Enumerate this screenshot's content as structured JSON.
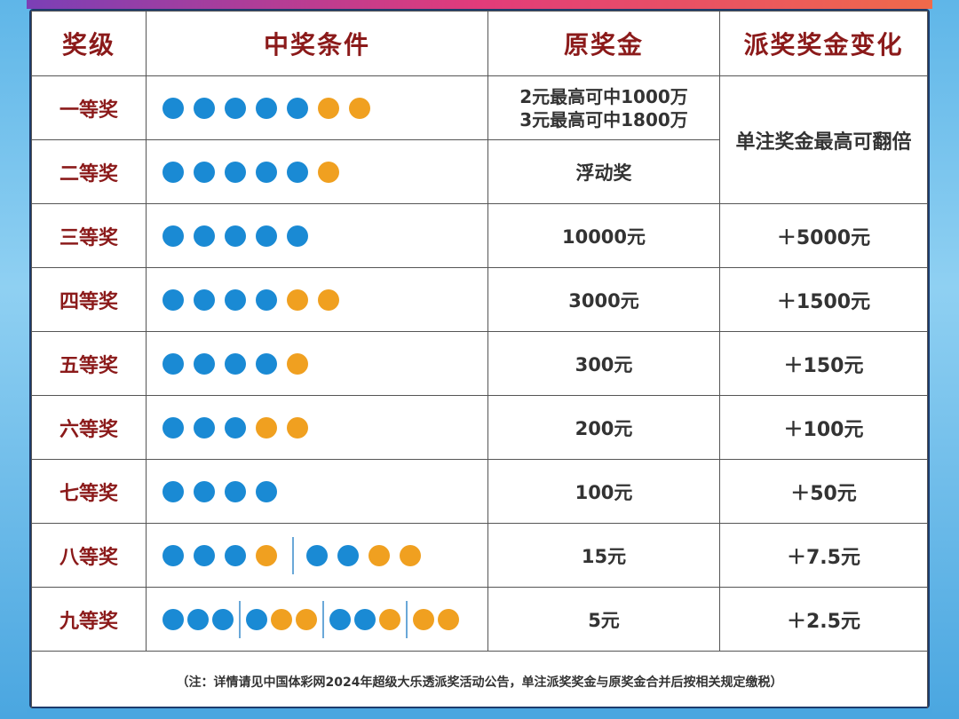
{
  "headers": [
    "奖级",
    "中奖条件",
    "原奖金",
    "派奖奖金变化"
  ],
  "rows": [
    {
      "level": "一等奖",
      "balls": "bbbbboo",
      "amount_lines": [
        "2元最高可中1000万",
        "3元最高可中1800万"
      ]
    },
    {
      "level": "二等奖",
      "balls": "bbbbbo",
      "amount_lines": [
        "浮动奖"
      ]
    },
    {
      "level": "三等奖",
      "balls": "bbbbb",
      "amount_lines": [
        "10000元"
      ],
      "change": "＋5000元"
    },
    {
      "level": "四等奖",
      "balls": "bbbboo",
      "amount_lines": [
        "3000元"
      ],
      "change": "＋1500元"
    },
    {
      "level": "五等奖",
      "balls": "bbbbo",
      "amount_lines": [
        "300元"
      ],
      "change": "＋150元"
    },
    {
      "level": "六等奖",
      "balls": "bbboo",
      "amount_lines": [
        "200元"
      ],
      "change": "＋100元"
    },
    {
      "level": "七等奖",
      "balls": "bbbb",
      "amount_lines": [
        "100元"
      ],
      "change": "＋50元"
    },
    {
      "level": "八等奖",
      "balls": "bbbo|bboo",
      "amount_lines": [
        "15元"
      ],
      "change": "＋7.5元"
    },
    {
      "level": "九等奖",
      "balls": "bbb|boo|bbo|oo",
      "amount_lines": [
        "5元"
      ],
      "change": "＋2.5元"
    }
  ],
  "merged_change_first_two": "单注奖金最高可翻倍",
  "footnote": "（注：详情请见中国体彩网2024年超级大乐透派奖活动公告，单注派奖奖金与原奖金合并后按相关规定缴税）",
  "colors": {
    "blue_ball": "#1a8ad4",
    "orange_ball": "#f0a020",
    "header_text": "#8b1a1a"
  }
}
